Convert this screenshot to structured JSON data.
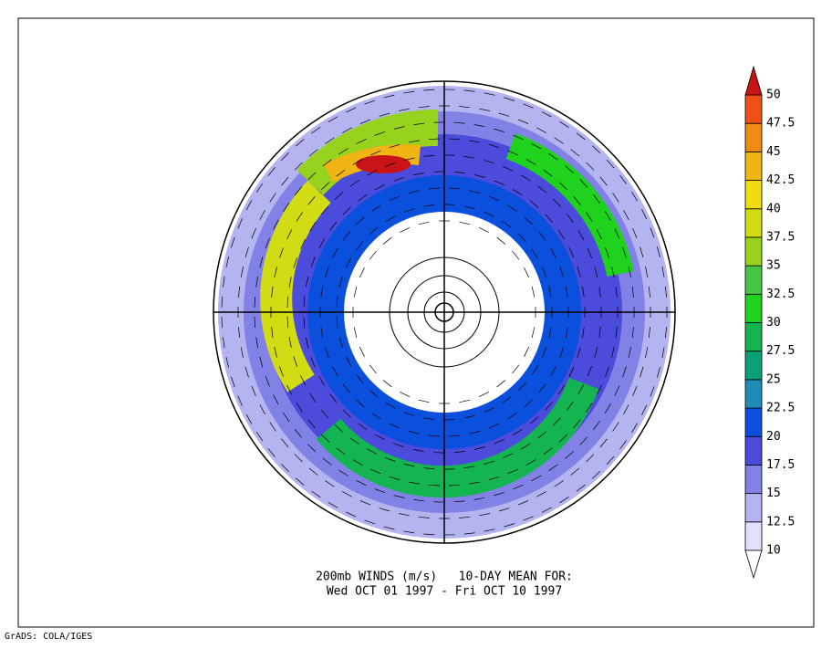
{
  "map": {
    "title_lines": [
      "200mb WINDS (m/s)   10-DAY MEAN FOR:",
      "Wed OCT 01 1997 - Fri OCT 10 1997"
    ]
  },
  "colorbar": {
    "levels": [
      10,
      12.5,
      15,
      17.5,
      20,
      22.5,
      25,
      27.5,
      30,
      32.5,
      35,
      37.5,
      40,
      42.5,
      45,
      47.5,
      50
    ],
    "colors": [
      "#ffffff",
      "#e1e1ff",
      "#b4b4f0",
      "#8282e6",
      "#4b4bdc",
      "#0a50dc",
      "#1e8cb4",
      "#0aa078",
      "#14b450",
      "#1ed21e",
      "#46c846",
      "#96d21e",
      "#d2dc14",
      "#f0dc14",
      "#f0b414",
      "#f08c14",
      "#f05014",
      "#c81414"
    ]
  },
  "footer": "GrADS: COLA/IGES"
}
